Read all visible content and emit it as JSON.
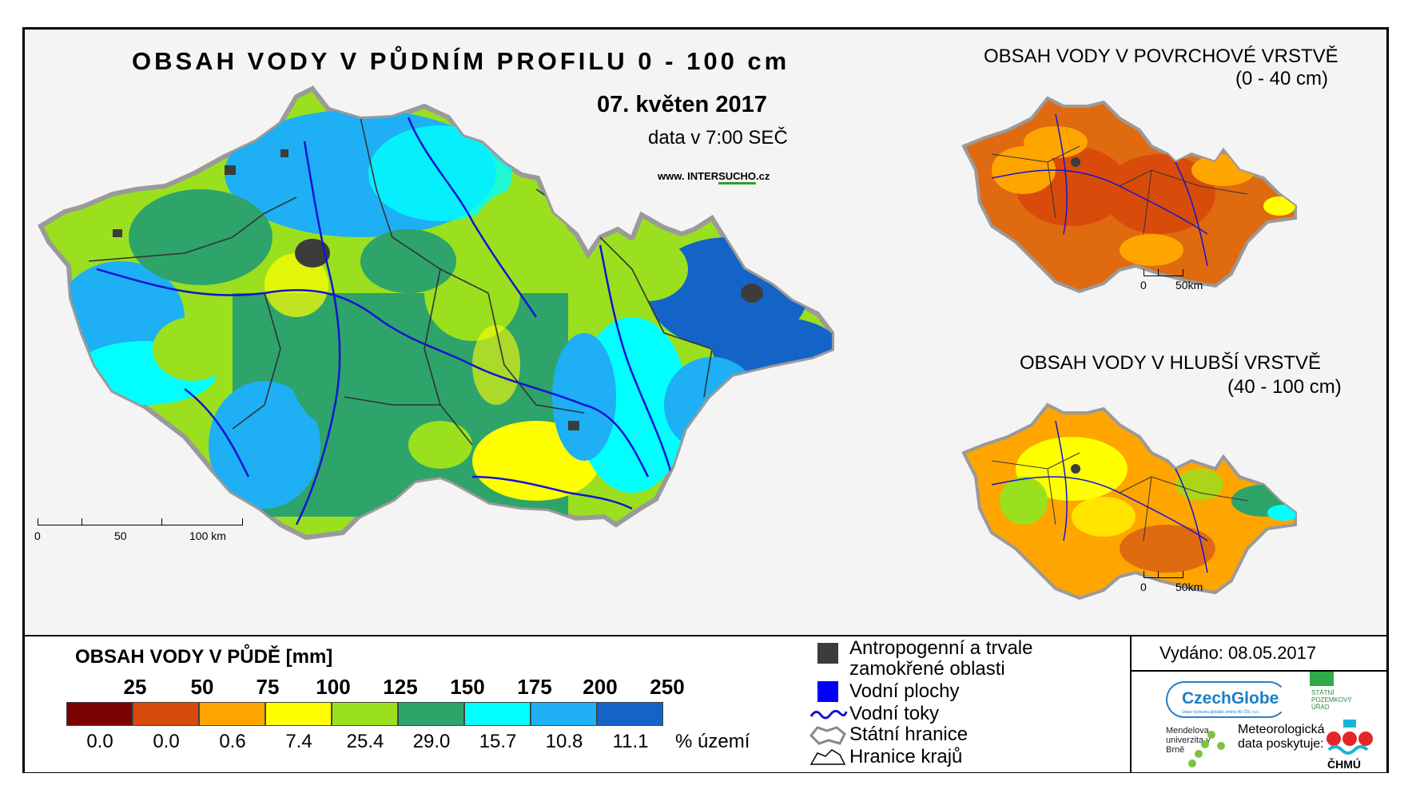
{
  "main_map": {
    "title": "OBSAH VODY V PŮDNÍM PROFILU 0 - 100 cm",
    "date": "07. květen 2017",
    "time": "data v 7:00 SEČ",
    "website_prefix": "www. INTER",
    "website_highlight": "SUCHO",
    "website_suffix": ".cz",
    "scale": {
      "zero": "0",
      "mid": "50",
      "end": "100 km"
    }
  },
  "surface_map": {
    "title": "OBSAH VODY V POVRCHOVÉ VRSTVĚ",
    "range": "(0 - 40 cm)",
    "scale": {
      "zero": "0",
      "end": "50km"
    }
  },
  "deep_map": {
    "title": "OBSAH VODY V HLUBŠÍ VRSTVĚ",
    "range": "(40 - 100 cm)",
    "scale": {
      "zero": "0",
      "end": "50km"
    }
  },
  "legend": {
    "title": "OBSAH VODY V PŮDĚ [mm]",
    "thresholds": [
      "25",
      "50",
      "75",
      "100",
      "125",
      "150",
      "175",
      "200",
      "250"
    ],
    "classes": [
      {
        "color": "#7b0000",
        "percent": "0.0"
      },
      {
        "color": "#d94b0a",
        "percent": "0.0"
      },
      {
        "color": "#ffa500",
        "percent": "0.6"
      },
      {
        "color": "#ffff00",
        "percent": "7.4"
      },
      {
        "color": "#9ae01e",
        "percent": "25.4"
      },
      {
        "color": "#2ea36a",
        "percent": "29.0"
      },
      {
        "color": "#00ffff",
        "percent": "15.7"
      },
      {
        "color": "#1eaff5",
        "percent": "10.8"
      },
      {
        "color": "#1464c8",
        "percent": "11.1"
      }
    ],
    "percent_label": "% území",
    "symbols": {
      "anthropogenic": "Antropogenní a trvale",
      "anthropogenic_2": "zamokřené oblasti",
      "water_bodies": "Vodní plochy",
      "streams": "Vodní toky",
      "state_border": "Státní hranice",
      "region_border": "Hranice krajů"
    }
  },
  "footer": {
    "issued": "Vydáno: 08.05.2017",
    "czechglobe": "CzechGlobe",
    "czechglobe_sub": "Ústav výzkumu globální změny AV ČR, v.v.i.",
    "spu": "STÁTNÍ POZEMKOVÝ ÚŘAD",
    "mendel": "Mendelova univerzita v Brně",
    "meteo": "Meteorologická data poskytuje:",
    "chmu": "ČHMÚ"
  },
  "colors": {
    "frame": "#000000",
    "map_background": "#f4f4f4",
    "river": "#1414d2",
    "anthropogenic": "#3c3c3c",
    "water_body": "#0000ff"
  }
}
